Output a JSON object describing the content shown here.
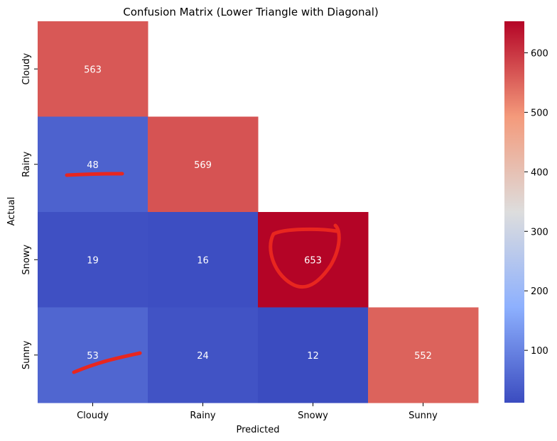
{
  "chart_data": {
    "type": "heatmap",
    "title": "Confusion Matrix (Lower Triangle with Diagonal)",
    "xlabel": "Predicted",
    "ylabel": "Actual",
    "x_categories": [
      "Cloudy",
      "Rainy",
      "Snowy",
      "Sunny"
    ],
    "y_categories": [
      "Cloudy",
      "Rainy",
      "Snowy",
      "Sunny"
    ],
    "matrix": [
      [
        563,
        null,
        null,
        null
      ],
      [
        48,
        569,
        null,
        null
      ],
      [
        19,
        16,
        653,
        null
      ],
      [
        53,
        24,
        12,
        552
      ]
    ],
    "colormap": "coolwarm",
    "value_range": [
      12,
      653
    ],
    "colorbar_ticks": [
      100,
      200,
      300,
      400,
      500,
      600
    ],
    "annotation_marks": [
      "red underline under Rainy/Cloudy cell",
      "red circle around Snowy/Snowy cell",
      "red slash under Sunny/Cloudy cell"
    ]
  }
}
